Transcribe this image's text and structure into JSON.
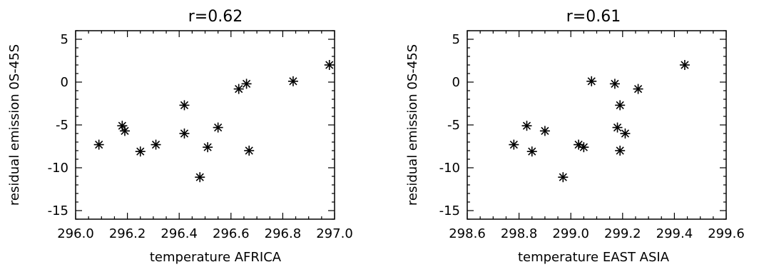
{
  "chart_data": [
    {
      "type": "scatter",
      "title": "r=0.62",
      "xlabel": "temperature AFRICA",
      "ylabel": "residual emission 0S-45S",
      "xlim": [
        296.0,
        297.0
      ],
      "ylim": [
        -16,
        6
      ],
      "xticks": [
        "296.0",
        "296.2",
        "296.4",
        "296.6",
        "296.8",
        "297.0"
      ],
      "yticks": [
        "5",
        "0",
        "-5",
        "-10",
        "-15"
      ],
      "marker": "asterisk",
      "grid": false,
      "points": [
        {
          "x": 296.09,
          "y": -7.3
        },
        {
          "x": 296.18,
          "y": -5.1
        },
        {
          "x": 296.19,
          "y": -5.7
        },
        {
          "x": 296.25,
          "y": -8.1
        },
        {
          "x": 296.31,
          "y": -7.3
        },
        {
          "x": 296.42,
          "y": -2.7
        },
        {
          "x": 296.42,
          "y": -6.0
        },
        {
          "x": 296.48,
          "y": -11.1
        },
        {
          "x": 296.51,
          "y": -7.6
        },
        {
          "x": 296.55,
          "y": -5.3
        },
        {
          "x": 296.63,
          "y": -0.8
        },
        {
          "x": 296.66,
          "y": -0.2
        },
        {
          "x": 296.67,
          "y": -8.0
        },
        {
          "x": 296.84,
          "y": 0.1
        },
        {
          "x": 296.98,
          "y": 2.0
        }
      ]
    },
    {
      "type": "scatter",
      "title": "r=0.61",
      "xlabel": "temperature EAST ASIA",
      "ylabel": "residual emission 0S-45S",
      "xlim": [
        298.6,
        299.6
      ],
      "ylim": [
        -16,
        6
      ],
      "xticks": [
        "298.6",
        "298.8",
        "299.0",
        "299.2",
        "299.4",
        "299.6"
      ],
      "yticks": [
        "5",
        "0",
        "-5",
        "-10",
        "-15"
      ],
      "marker": "asterisk",
      "grid": false,
      "points": [
        {
          "x": 298.78,
          "y": -7.3
        },
        {
          "x": 298.83,
          "y": -5.1
        },
        {
          "x": 298.85,
          "y": -8.1
        },
        {
          "x": 298.9,
          "y": -5.7
        },
        {
          "x": 298.97,
          "y": -11.1
        },
        {
          "x": 299.03,
          "y": -7.3
        },
        {
          "x": 299.05,
          "y": -7.6
        },
        {
          "x": 299.08,
          "y": 0.1
        },
        {
          "x": 299.17,
          "y": -0.2
        },
        {
          "x": 299.18,
          "y": -5.3
        },
        {
          "x": 299.19,
          "y": -8.0
        },
        {
          "x": 299.19,
          "y": -2.7
        },
        {
          "x": 299.21,
          "y": -6.0
        },
        {
          "x": 299.26,
          "y": -0.8
        },
        {
          "x": 299.44,
          "y": 2.0
        }
      ]
    }
  ]
}
